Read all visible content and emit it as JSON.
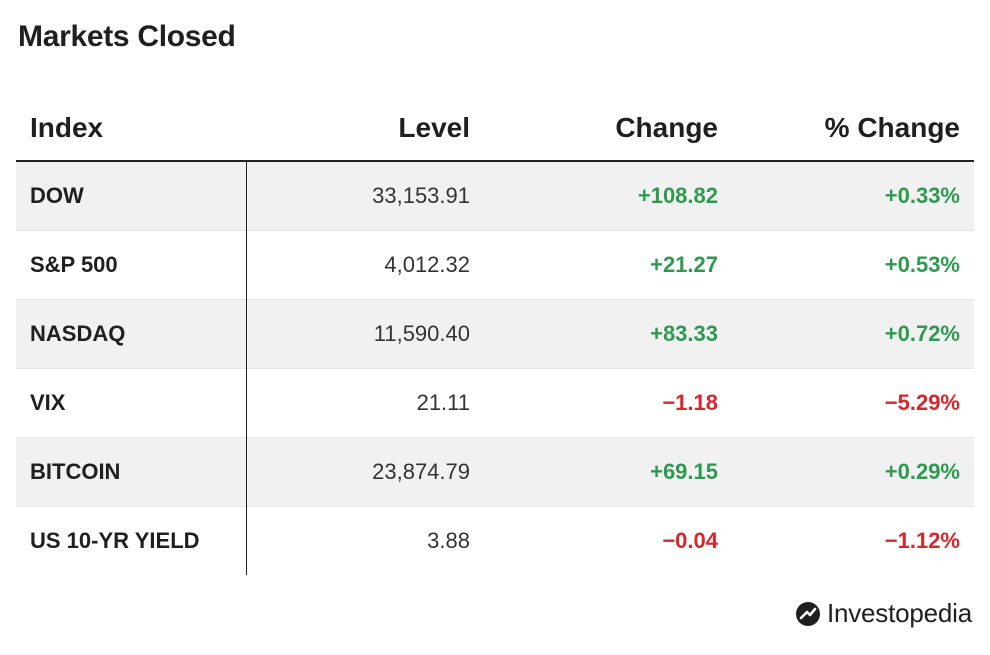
{
  "title": "Markets Closed",
  "columns": {
    "index": "Index",
    "level": "Level",
    "change": "Change",
    "pct_change": "% Change"
  },
  "rows": [
    {
      "index": "DOW",
      "level": "33,153.91",
      "change": "+108.82",
      "pct": "+0.33%",
      "direction": "up"
    },
    {
      "index": "S&P 500",
      "level": "4,012.32",
      "change": "+21.27",
      "pct": "+0.53%",
      "direction": "up"
    },
    {
      "index": "NASDAQ",
      "level": "11,590.40",
      "change": "+83.33",
      "pct": "+0.72%",
      "direction": "up"
    },
    {
      "index": "VIX",
      "level": "21.11",
      "change": "−1.18",
      "pct": "−5.29%",
      "direction": "down"
    },
    {
      "index": "BITCOIN",
      "level": "23,874.79",
      "change": "+69.15",
      "pct": "+0.29%",
      "direction": "up"
    },
    {
      "index": "US 10-YR YIELD",
      "level": "3.88",
      "change": "−0.04",
      "pct": "−1.12%",
      "direction": "down"
    }
  ],
  "colors": {
    "positive": "#2e9a4f",
    "negative": "#d8262d"
  },
  "brand": {
    "name": "Investopedia",
    "logo_icon": "investopedia-logo-icon"
  }
}
